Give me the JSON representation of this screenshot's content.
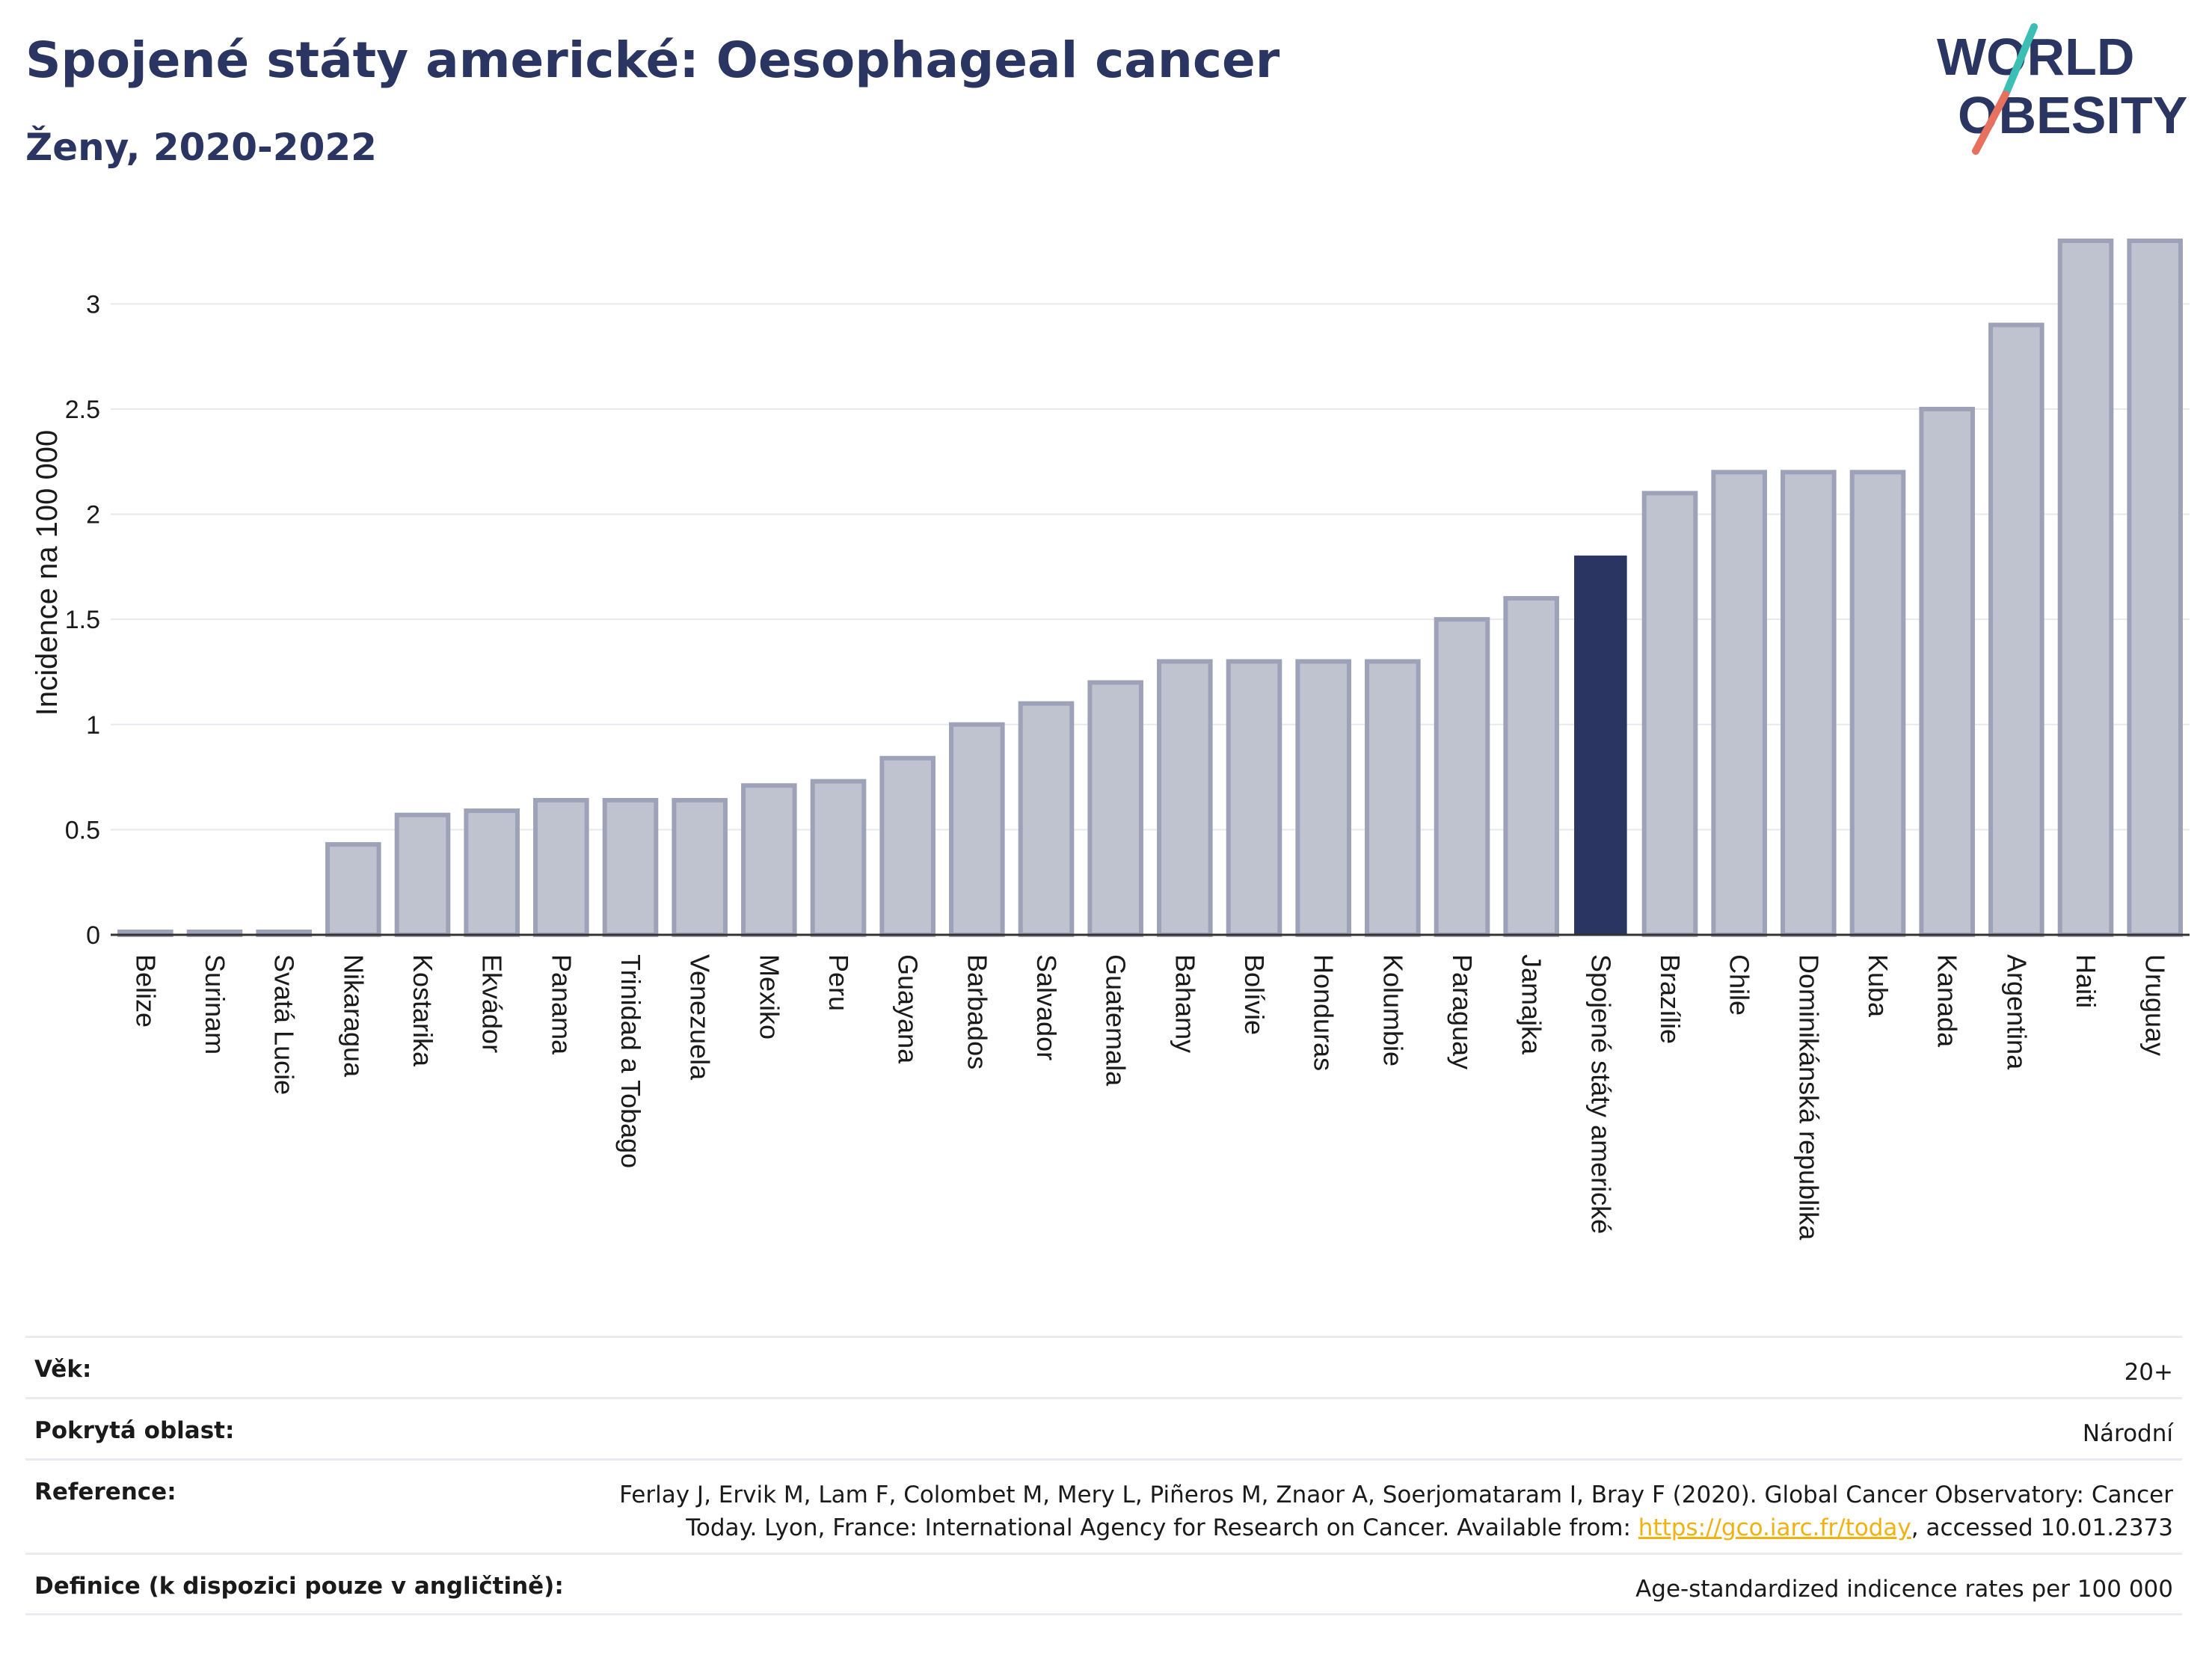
{
  "header": {
    "title": "Spojené státy americké: Oesophageal cancer",
    "subtitle": "Ženy, 2020-2022"
  },
  "logo": {
    "line1": "WORLD",
    "line2": "OBESITY",
    "colors": {
      "text": "#2b3562",
      "slash_top": "#3bbfb4",
      "slash_bottom": "#e8705e"
    }
  },
  "colors": {
    "bar": "#bfc3d0",
    "bar_border": "#9da2b8",
    "highlight": "#2b3562",
    "grid": "#e7e9ef",
    "axis": "#333333"
  },
  "chart_data": {
    "type": "bar",
    "categories": [
      "Belize",
      "Surinam",
      "Svatá Lucie",
      "Nikaragua",
      "Kostarika",
      "Ekvádor",
      "Panama",
      "Trinidad a Tobago",
      "Venezuela",
      "Mexiko",
      "Peru",
      "Guayana",
      "Barbados",
      "Salvador",
      "Guatemala",
      "Bahamy",
      "Bolívie",
      "Honduras",
      "Kolumbie",
      "Paraguay",
      "Jamajka",
      "Spojené státy americké",
      "Brazílie",
      "Chile",
      "Dominikánská republika",
      "Kuba",
      "Kanada",
      "Argentina",
      "Haiti",
      "Uruguay"
    ],
    "values": [
      0,
      0,
      0,
      0.43,
      0.57,
      0.59,
      0.64,
      0.64,
      0.64,
      0.71,
      0.73,
      0.84,
      1.0,
      1.1,
      1.2,
      1.3,
      1.3,
      1.3,
      1.3,
      1.5,
      1.6,
      1.8,
      2.1,
      2.2,
      2.2,
      2.2,
      2.5,
      2.9,
      3.3,
      3.3
    ],
    "highlight": "Spojené státy americké",
    "ylabel": "Incidence na 100 000",
    "xlabel": "",
    "ylim": [
      0,
      3.3
    ],
    "yticks": [
      0,
      0.5,
      1,
      1.5,
      2,
      2.5,
      3
    ],
    "ytick_labels": [
      "0",
      "0.5",
      "1",
      "1.5",
      "2",
      "2.5",
      "3"
    ],
    "grid": true
  },
  "meta": {
    "age_label": "Věk:",
    "age_value": "20+",
    "area_label": "Pokrytá oblast:",
    "area_value": "Národní",
    "reference_label": "Reference:",
    "reference_text_1": "Ferlay J, Ervik M, Lam F, Colombet M, Mery L, Piñeros M, Znaor A, Soerjomataram I, Bray F (2020). Global Cancer Observatory: Cancer",
    "reference_text_2": "Today. Lyon, France: International Agency for Research on Cancer. Available from:",
    "reference_link": "https://gco.iarc.fr/today",
    "reference_text_3": ", accessed 10.01.2373",
    "definition_label": "Definice (k dispozici pouze v angličtině):",
    "definition_value": "Age-standardized indicence rates per 100 000"
  }
}
